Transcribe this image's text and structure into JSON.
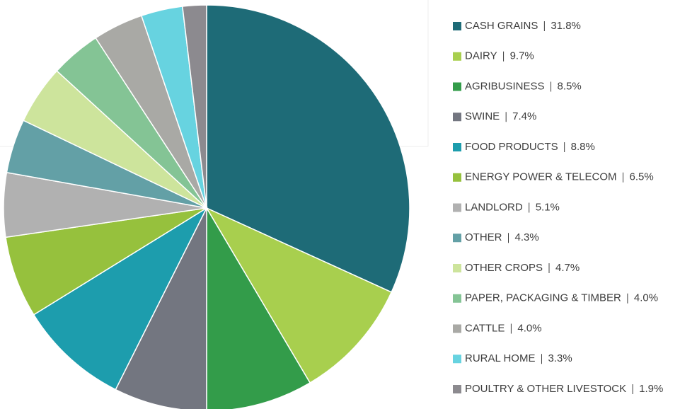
{
  "chart_data": {
    "type": "pie",
    "categories": [
      "CASH GRAINS",
      "DAIRY",
      "AGRIBUSINESS",
      "SWINE",
      "FOOD PRODUCTS",
      "ENERGY POWER & TELECOM",
      "LANDLORD",
      "OTHER",
      "OTHER CROPS",
      "PAPER, PACKAGING & TIMBER",
      "CATTLE",
      "RURAL HOME",
      "POULTRY & OTHER LIVESTOCK"
    ],
    "values": [
      31.8,
      9.7,
      8.5,
      7.4,
      8.8,
      6.5,
      5.1,
      4.3,
      4.7,
      4.0,
      4.0,
      3.3,
      1.9
    ],
    "value_labels": [
      "31.8%",
      "9.7%",
      "8.5%",
      "7.4%",
      "8.8%",
      "6.5%",
      "5.1%",
      "4.3%",
      "4.7%",
      "4.0%",
      "4.0%",
      "3.3%",
      "1.9%"
    ],
    "colors": [
      "#1e6b77",
      "#a8cf4e",
      "#339c4a",
      "#737680",
      "#1d9dad",
      "#96c13d",
      "#b1b1b1",
      "#63a0a6",
      "#cde49c",
      "#84c495",
      "#a9a9a5",
      "#67d3e0",
      "#8c8a8f"
    ],
    "legend": "right"
  }
}
